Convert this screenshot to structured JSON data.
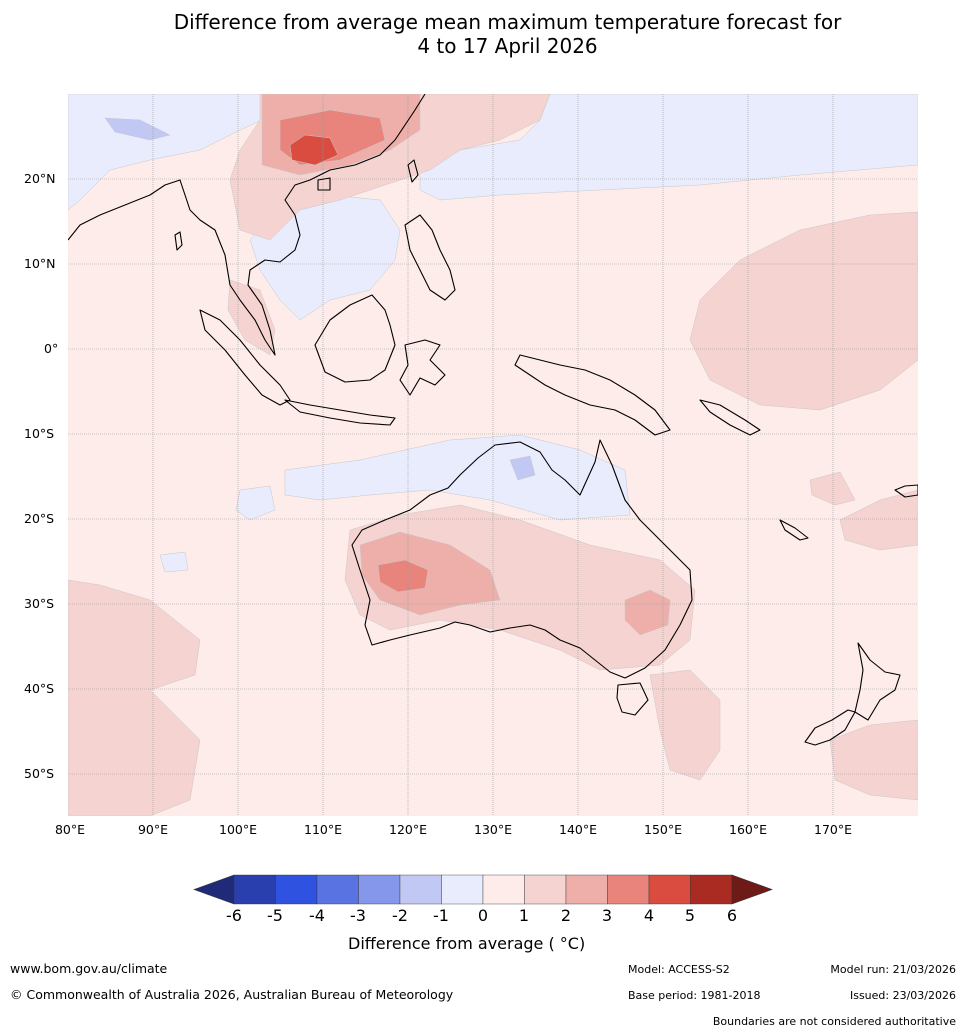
{
  "title_line1": "Difference from average mean maximum temperature forecast for",
  "title_line2": "4 to 17 April 2026",
  "map": {
    "lon_range": [
      80,
      180
    ],
    "lat_range": [
      -55,
      30
    ],
    "lat_labels": [
      "20°N",
      "10°N",
      "0°",
      "10°S",
      "20°S",
      "30°S",
      "40°S",
      "50°S"
    ],
    "lon_labels": [
      "80°E",
      "90°E",
      "100°E",
      "110°E",
      "120°E",
      "130°E",
      "140°E",
      "150°E",
      "160°E",
      "170°E"
    ]
  },
  "legend": {
    "ticks": [
      "-6",
      "-5",
      "-4",
      "-3",
      "-2",
      "-1",
      "0",
      "1",
      "2",
      "3",
      "4",
      "5",
      "6"
    ],
    "colors": [
      "#1f2a78",
      "#2a3fae",
      "#3052e0",
      "#5a73e3",
      "#8597ea",
      "#c0c8f3",
      "#e8ecfc",
      "#fdecea",
      "#f5d3d1",
      "#eeaea9",
      "#e8847c",
      "#d94c3f",
      "#aa2b22",
      "#6e1a16"
    ],
    "label": "Difference from average ( °C)"
  },
  "footer": {
    "website": "www.bom.gov.au/climate",
    "copyright": "© Commonwealth of Australia 2026, Australian Bureau of Meteorology",
    "model": "Model: ACCESS-S2",
    "base_period": "Base period: 1981-2018",
    "model_run": "Model run: 21/03/2026",
    "issued": "Issued: 23/03/2026",
    "boundaries": "Boundaries are not considered authoritative"
  }
}
